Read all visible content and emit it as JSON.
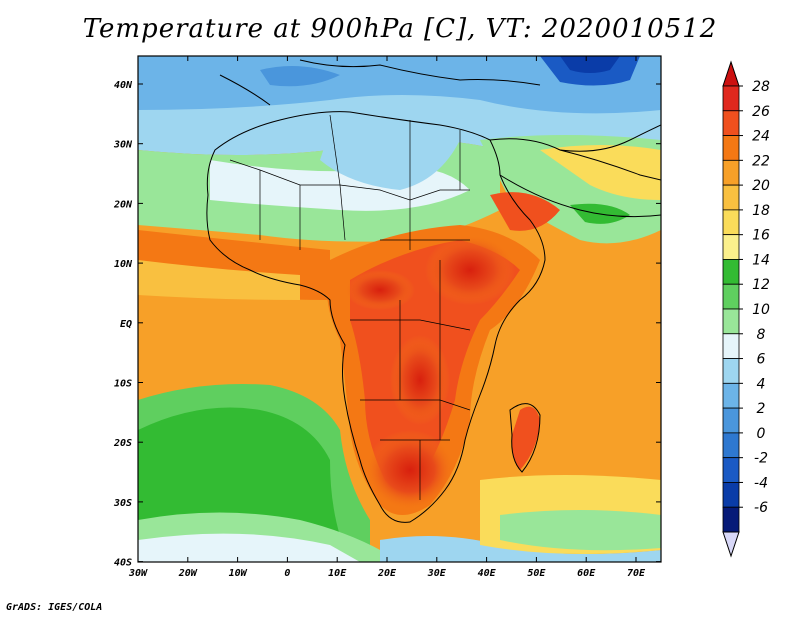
{
  "title": "Temperature at 900hPa [C], VT: 2020010512",
  "credit": "GrADS: IGES/COLA",
  "map": {
    "lon_labels": [
      "30W",
      "20W",
      "10W",
      "0",
      "10E",
      "20E",
      "30E",
      "40E",
      "50E",
      "60E",
      "70E"
    ],
    "lat_labels": [
      "40N",
      "30N",
      "20N",
      "10N",
      "EQ",
      "10S",
      "20S",
      "30S",
      "40S"
    ],
    "lon_range": [
      -30,
      75
    ],
    "lat_range": [
      -40,
      44
    ]
  },
  "colorbar": {
    "labels": [
      "28",
      "26",
      "24",
      "22",
      "20",
      "18",
      "16",
      "14",
      "12",
      "10",
      "8",
      "6",
      "4",
      "2",
      "0",
      "-2",
      "-4",
      "-6"
    ],
    "colors": [
      "#e0281e",
      "#f0501e",
      "#f47814",
      "#f7a028",
      "#f9c040",
      "#fadc5a",
      "#fbf08c",
      "#33bb33",
      "#5fcf5f",
      "#99e699",
      "#e6f5fa",
      "#9ed6f0",
      "#6cb4e8",
      "#4a96dc",
      "#2e78d0",
      "#1a5ac4",
      "#0a3ca8",
      "#061a78"
    ],
    "top_color": "#cc1010",
    "bottom_color": "#d8d8f8"
  }
}
